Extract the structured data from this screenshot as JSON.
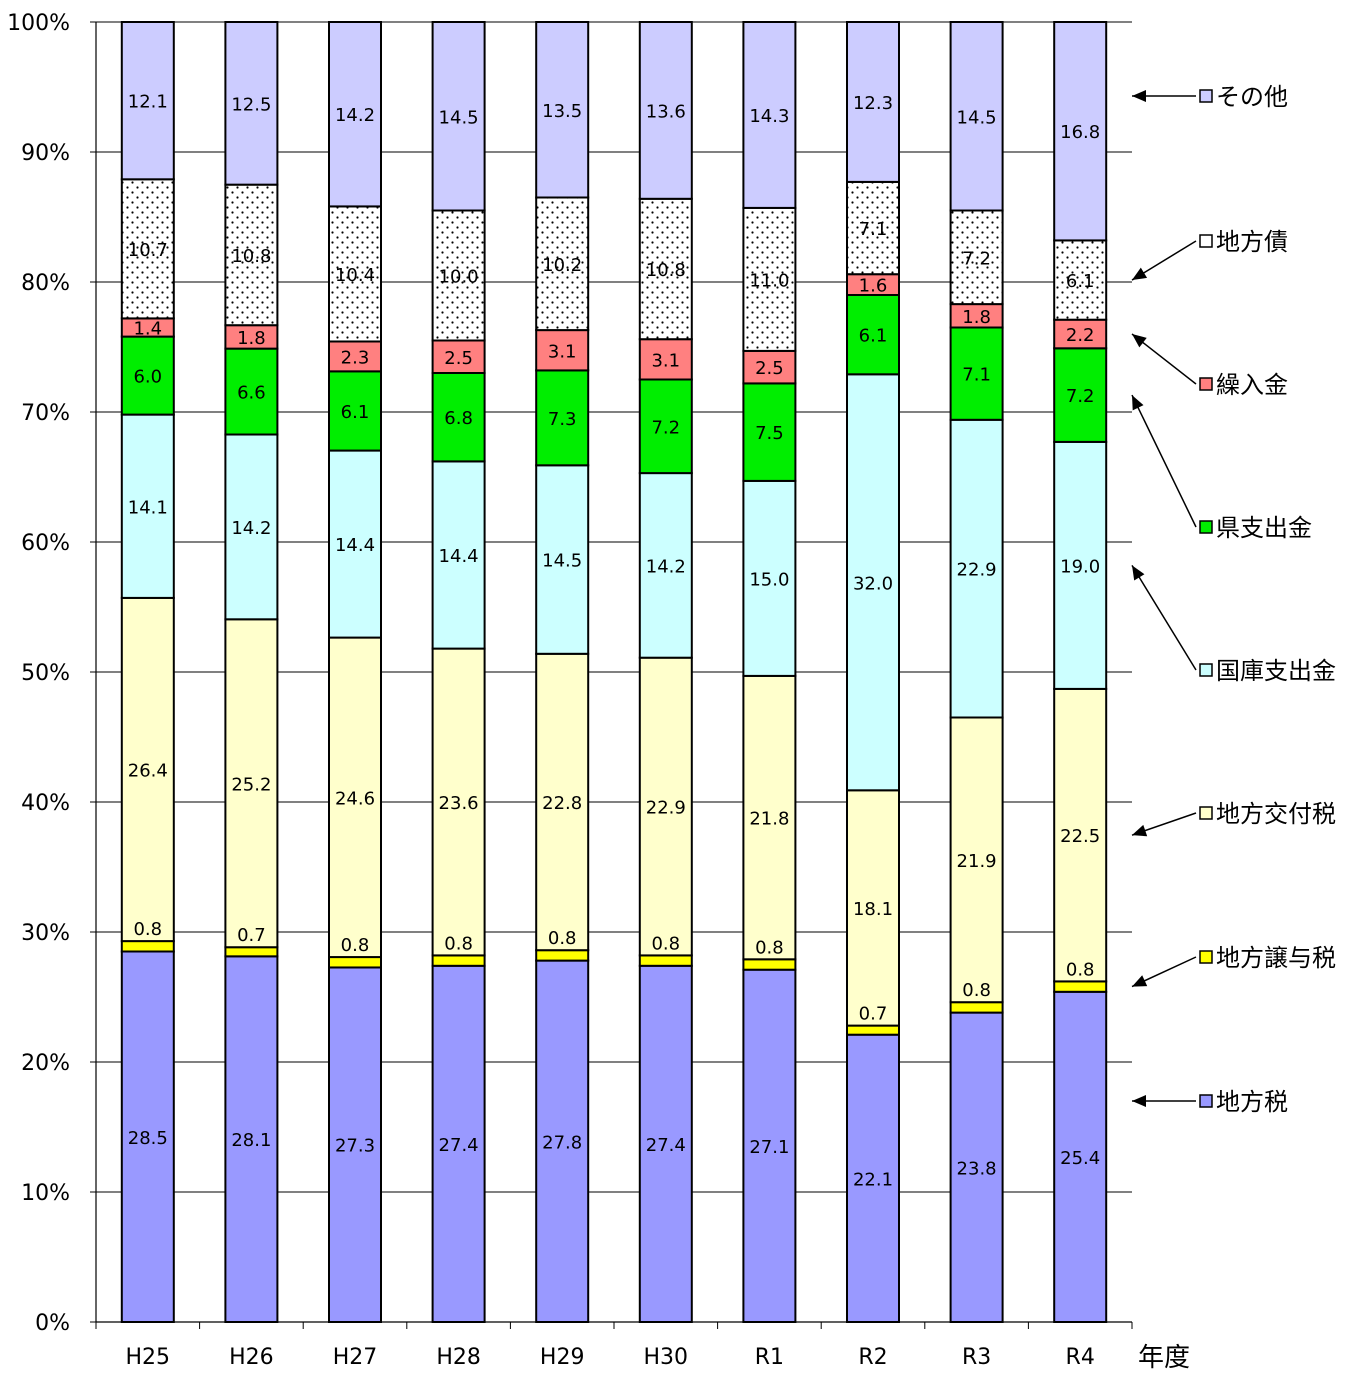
{
  "chart_data": {
    "type": "bar",
    "stacked": true,
    "normalized_percent": true,
    "title": "",
    "xlabel": "年度",
    "ylabel": "",
    "ylim": [
      0,
      100
    ],
    "y_ticks": [
      "0%",
      "10%",
      "20%",
      "30%",
      "40%",
      "50%",
      "60%",
      "70%",
      "80%",
      "90%",
      "100%"
    ],
    "grid": true,
    "legend_position": "right",
    "categories": [
      "H25",
      "H26",
      "H27",
      "H28",
      "H29",
      "H30",
      "R1",
      "R2",
      "R3",
      "R4"
    ],
    "series": [
      {
        "name": "地方税",
        "color": "#9999ff",
        "pattern": "solid",
        "values": [
          28.5,
          28.1,
          27.3,
          27.4,
          27.8,
          27.4,
          27.1,
          22.1,
          23.8,
          25.4
        ],
        "labels": [
          "28.5",
          "28.1",
          "27.3",
          "27.4",
          "27.8",
          "27.4",
          "27.1",
          "22.1",
          "23.8",
          "25.4"
        ]
      },
      {
        "name": "地方譲与税",
        "color": "#ffff00",
        "pattern": "solid",
        "values": [
          0.8,
          0.7,
          0.8,
          0.8,
          0.8,
          0.8,
          0.8,
          0.7,
          0.8,
          0.8
        ],
        "labels": [
          "0.8",
          "0.7",
          "0.8",
          "0.8",
          "0.8",
          "0.8",
          "0.8",
          "0.7",
          "0.8",
          "0.8"
        ]
      },
      {
        "name": "地方交付税",
        "color": "#ffffcc",
        "pattern": "solid",
        "values": [
          26.4,
          25.2,
          24.6,
          23.6,
          22.8,
          22.9,
          21.8,
          18.1,
          21.9,
          22.5
        ],
        "labels": [
          "26.4",
          "25.2",
          "24.6",
          "23.6",
          "22.8",
          "22.9",
          "21.8",
          "18.1",
          "21.9",
          "22.5"
        ]
      },
      {
        "name": "国庫支出金",
        "color": "#ccffff",
        "pattern": "solid",
        "values": [
          14.1,
          14.2,
          14.4,
          14.4,
          14.5,
          14.2,
          15.0,
          32.0,
          22.9,
          19.0
        ],
        "labels": [
          "14.1",
          "14.2",
          "14.4",
          "14.4",
          "14.5",
          "14.2",
          "15.0",
          "32.0",
          "22.9",
          "19.0"
        ]
      },
      {
        "name": "県支出金",
        "color": "#00ee00",
        "pattern": "solid",
        "values": [
          6.0,
          6.6,
          6.1,
          6.8,
          7.3,
          7.2,
          7.5,
          6.1,
          7.1,
          7.2
        ],
        "labels": [
          "6.0",
          "6.6",
          "6.1",
          "6.8",
          "7.3",
          "7.2",
          "7.5",
          "6.1",
          "7.1",
          "7.2"
        ]
      },
      {
        "name": "繰入金",
        "color": "#ff8080",
        "pattern": "solid",
        "values": [
          1.4,
          1.8,
          2.3,
          2.5,
          3.1,
          3.1,
          2.5,
          1.6,
          1.8,
          2.2
        ],
        "labels": [
          "1.4",
          "1.8",
          "2.3",
          "2.5",
          "3.1",
          "3.1",
          "2.5",
          "1.6",
          "1.8",
          "2.2"
        ]
      },
      {
        "name": "地方債",
        "color": "#ffffff",
        "pattern": "dots",
        "values": [
          10.7,
          10.8,
          10.4,
          10.0,
          10.2,
          10.8,
          11.0,
          7.1,
          7.2,
          6.1
        ],
        "labels": [
          "10.7",
          "10.8",
          "10.4",
          "10.0",
          "10.2",
          "10.8",
          "11.0",
          "7.1",
          "7.2",
          "6.1"
        ]
      },
      {
        "name": "その他",
        "color": "#ccccff",
        "pattern": "solid",
        "values": [
          12.1,
          12.5,
          14.2,
          14.5,
          13.5,
          13.6,
          14.3,
          12.3,
          14.5,
          16.8
        ],
        "labels": [
          "12.1",
          "12.5",
          "14.2",
          "14.5",
          "13.5",
          "13.6",
          "14.3",
          "12.3",
          "14.5",
          "16.8"
        ]
      }
    ],
    "legend": [
      {
        "series": "その他",
        "text": "その他"
      },
      {
        "series": "地方債",
        "text": "地方債"
      },
      {
        "series": "繰入金",
        "text": "繰入金"
      },
      {
        "series": "県支出金",
        "text": "県支出金"
      },
      {
        "series": "国庫支出金",
        "text": "国庫支出金"
      },
      {
        "series": "地方交付税",
        "text": "地方交付税"
      },
      {
        "series": "地方譲与税",
        "text": "地方譲与税"
      },
      {
        "series": "地方税",
        "text": "地方税"
      }
    ]
  }
}
